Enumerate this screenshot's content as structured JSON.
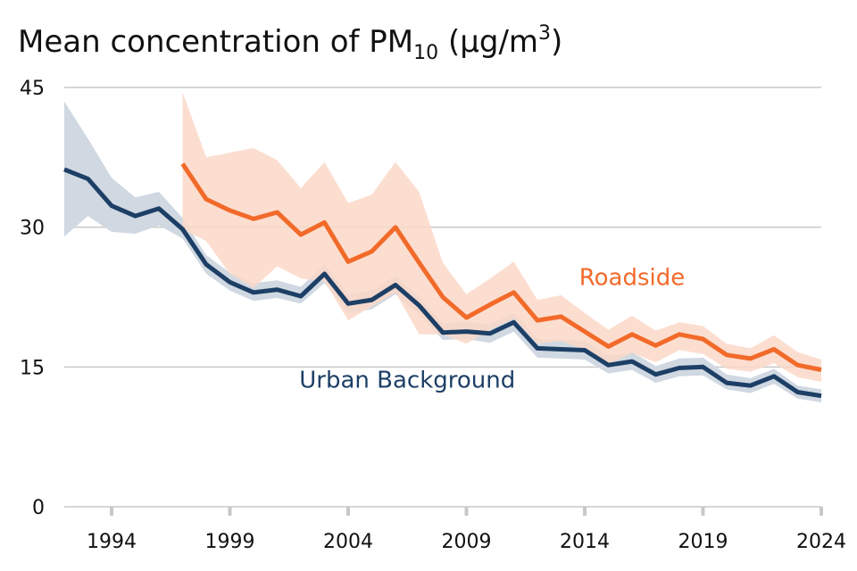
{
  "title": {
    "text": "Mean concentration of PM",
    "subscript": "10",
    "units_open": " (µg/m",
    "superscript": "3",
    "units_close": ")"
  },
  "colors": {
    "urban_line": "#1d3f66",
    "urban_band": "#d0d8e2",
    "roadside_line": "#f26a2a",
    "roadside_band": "#fbd8c8",
    "grid": "#c8c8c8"
  },
  "chart_data": {
    "type": "line",
    "title": "Mean concentration of PM10 (µg/m3)",
    "xlabel": "",
    "ylabel": "",
    "xlim": [
      1992,
      2024
    ],
    "ylim": [
      0,
      45
    ],
    "y_ticks": [
      "0",
      "15",
      "30",
      "45"
    ],
    "x_ticks": [
      "1994",
      "1999",
      "2004",
      "2009",
      "2014",
      "2019",
      "2024"
    ],
    "grid": true,
    "series": [
      {
        "name": "Urban Background",
        "x": [
          1992,
          1993,
          1994,
          1995,
          1996,
          1997,
          1998,
          1999,
          2000,
          2001,
          2002,
          2003,
          2004,
          2005,
          2006,
          2007,
          2008,
          2009,
          2010,
          2011,
          2012,
          2013,
          2014,
          2015,
          2016,
          2017,
          2018,
          2019,
          2020,
          2021,
          2022,
          2023,
          2024
        ],
        "values": [
          36.2,
          35.2,
          32.3,
          31.2,
          32.0,
          29.8,
          26.0,
          24.1,
          23.0,
          23.3,
          22.6,
          25.0,
          21.8,
          22.2,
          23.8,
          21.6,
          18.7,
          18.8,
          18.6,
          19.8,
          17.0,
          16.9,
          16.8,
          15.2,
          15.6,
          14.2,
          14.9,
          15.0,
          13.3,
          13.0,
          14.0,
          12.3,
          11.9
        ],
        "lower": [
          29.0,
          31.2,
          29.5,
          29.3,
          30.2,
          28.8,
          25.0,
          23.2,
          22.1,
          22.4,
          21.8,
          24.0,
          20.8,
          21.2,
          22.8,
          20.6,
          17.9,
          18.0,
          17.6,
          18.8,
          16.0,
          15.9,
          15.8,
          14.3,
          14.7,
          13.3,
          14.0,
          14.1,
          12.6,
          12.2,
          13.2,
          11.6,
          11.2
        ],
        "upper": [
          43.5,
          39.5,
          35.3,
          33.2,
          33.8,
          31.0,
          27.0,
          25.1,
          24.0,
          24.3,
          23.6,
          26.0,
          22.8,
          23.2,
          24.8,
          22.6,
          19.7,
          19.8,
          19.6,
          20.8,
          18.0,
          17.9,
          17.8,
          16.2,
          16.6,
          15.1,
          15.9,
          16.0,
          14.2,
          13.8,
          14.8,
          13.0,
          12.6
        ]
      },
      {
        "name": "Roadside",
        "x": [
          1997,
          1998,
          1999,
          2000,
          2001,
          2002,
          2003,
          2004,
          2005,
          2006,
          2007,
          2008,
          2009,
          2010,
          2011,
          2012,
          2013,
          2014,
          2015,
          2016,
          2017,
          2018,
          2019,
          2020,
          2021,
          2022,
          2023,
          2024
        ],
        "values": [
          36.8,
          33.0,
          31.8,
          30.9,
          31.6,
          29.2,
          30.5,
          26.3,
          27.4,
          30.0,
          26.2,
          22.5,
          20.3,
          21.7,
          23.0,
          20.0,
          20.4,
          18.8,
          17.2,
          18.5,
          17.3,
          18.5,
          18.0,
          16.3,
          15.9,
          16.9,
          15.2,
          14.7
        ],
        "lower": [
          29.8,
          28.5,
          25.0,
          23.5,
          25.8,
          24.5,
          24.2,
          20.0,
          21.5,
          23.0,
          18.5,
          18.5,
          17.5,
          19.0,
          20.2,
          17.5,
          17.8,
          16.8,
          15.3,
          16.5,
          15.5,
          16.8,
          16.4,
          14.8,
          14.5,
          15.4,
          13.9,
          13.4
        ],
        "upper": [
          44.5,
          37.5,
          38.0,
          38.5,
          37.2,
          34.2,
          37.0,
          32.6,
          33.5,
          37.0,
          33.8,
          26.2,
          22.8,
          24.5,
          26.3,
          22.2,
          22.7,
          20.8,
          19.0,
          20.5,
          18.9,
          19.8,
          19.4,
          17.5,
          17.0,
          18.4,
          16.6,
          15.8
        ]
      }
    ],
    "annotations": [
      {
        "text": "Roadside",
        "x": 2016,
        "y": 23.8
      },
      {
        "text": "Urban Background",
        "x": 2006.5,
        "y": 12.8
      }
    ]
  }
}
